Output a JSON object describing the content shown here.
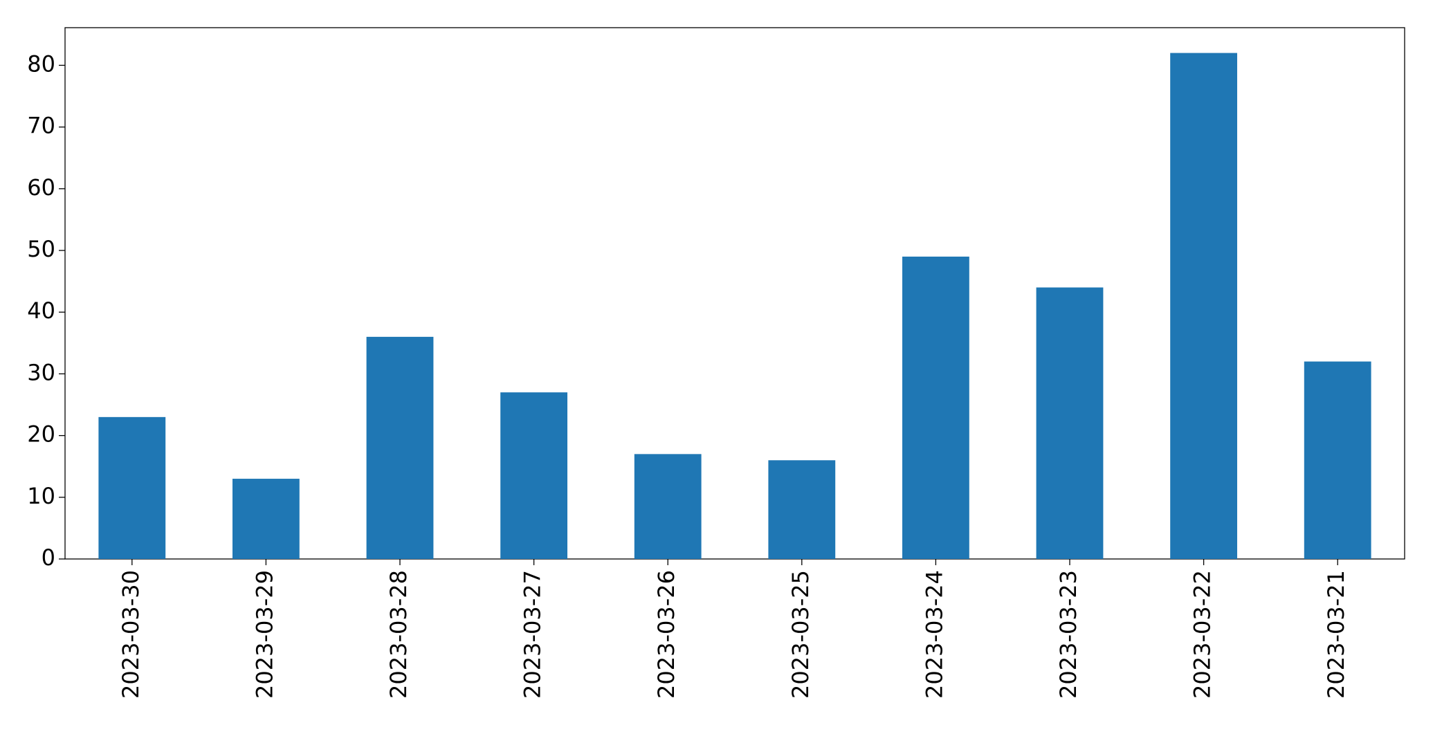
{
  "chart_data": {
    "type": "bar",
    "categories": [
      "2023-03-30",
      "2023-03-29",
      "2023-03-28",
      "2023-03-27",
      "2023-03-26",
      "2023-03-25",
      "2023-03-24",
      "2023-03-23",
      "2023-03-22",
      "2023-03-21"
    ],
    "values": [
      23,
      13,
      36,
      27,
      17,
      16,
      49,
      44,
      82,
      32
    ],
    "color": "#1f77b4",
    "ylim": [
      0,
      86.1
    ],
    "yticks": [
      0,
      10,
      20,
      30,
      40,
      50,
      60,
      70,
      80
    ],
    "grid": false
  }
}
